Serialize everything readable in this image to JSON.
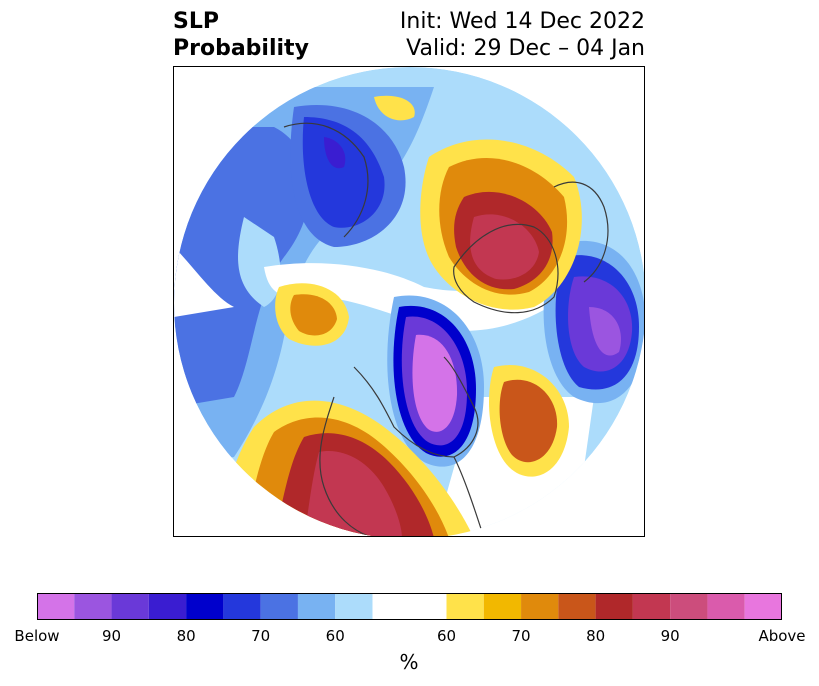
{
  "title": {
    "left_line1": "SLP",
    "left_line2": "Probability",
    "right_line1": "Init: Wed 14 Dec 2022",
    "right_line2": "Valid: 29 Dec – 04 Jan"
  },
  "colorbar": {
    "units": "%",
    "colors": [
      "#d473e8",
      "#9b55e0",
      "#6a39d8",
      "#3a1dd1",
      "#0000cc",
      "#2438dc",
      "#4b72e3",
      "#78b2f2",
      "#acdcfb",
      "#ffffff",
      "#ffe24a",
      "#f2b800",
      "#e08a0c",
      "#c9561a",
      "#b0282a",
      "#c23751",
      "#cc4d7c",
      "#da5bac",
      "#e876de"
    ],
    "tick_labels": [
      "Below",
      "90",
      "80",
      "70",
      "60",
      "60",
      "70",
      "80",
      "90",
      "Above"
    ]
  }
}
